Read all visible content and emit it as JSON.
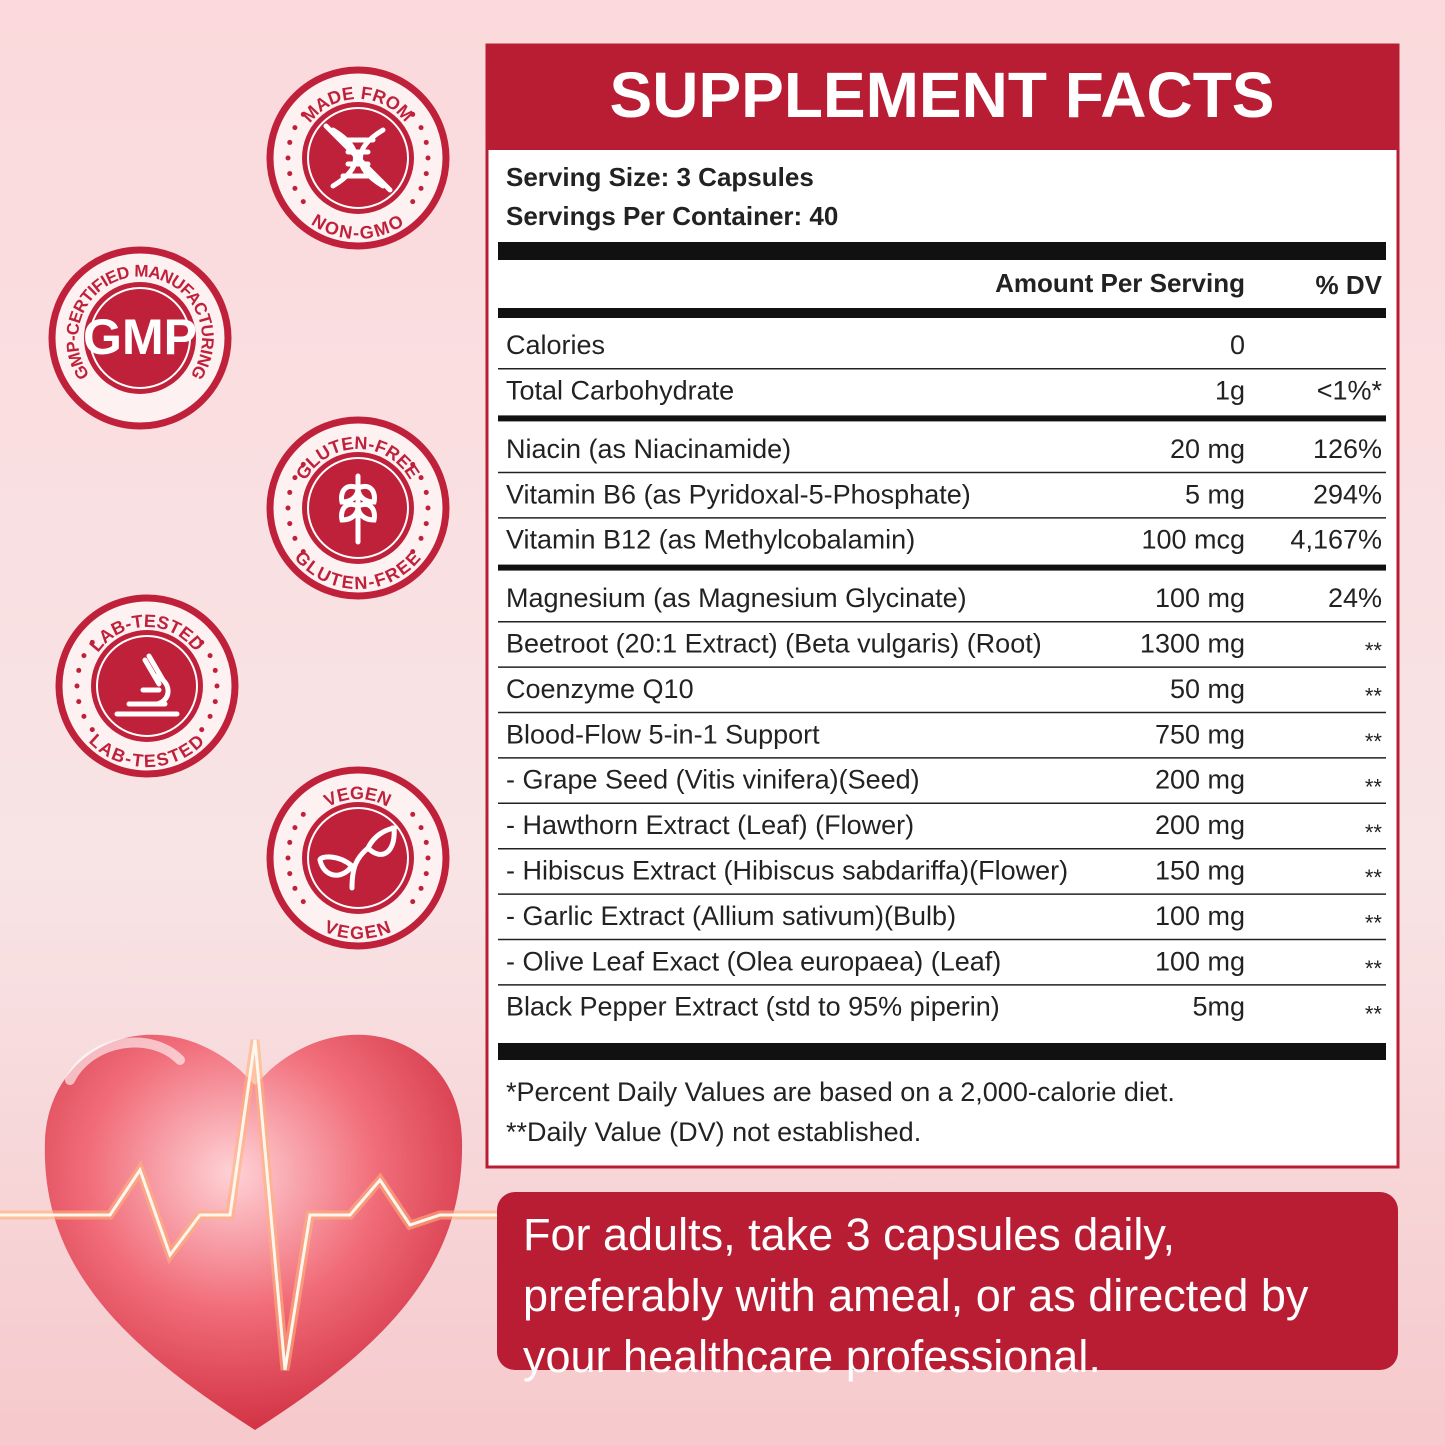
{
  "badges": [
    {
      "top": "MADE FROM",
      "bottom": "NON-GMO"
    },
    {
      "ring": "GMP-CERTIFIED MANUFACTURING",
      "center": "GMP"
    },
    {
      "top": "GLUTEN-FREE",
      "bottom": "GLUTEN-FREE"
    },
    {
      "top": "LAB-TESTED",
      "bottom": "LAB-TESTED"
    },
    {
      "top": "VEGEN",
      "bottom": "VEGEN"
    }
  ],
  "label": {
    "title": "SUPPLEMENT FACTS",
    "serving_size": "Serving Size: 3 Capsules",
    "servings_per_container": "Servings Per Container: 40",
    "columns": {
      "amount": "Amount Per Serving",
      "dv": "% DV"
    },
    "groups": [
      [
        {
          "name": "Calories",
          "amount": "0"
        },
        {
          "name": "Total Carbohydrate",
          "amount": "1g",
          "dv": "<1%*"
        }
      ],
      [
        {
          "name": "Niacin (as Niacinamide)",
          "amount": "20 mg",
          "dv": "126%"
        },
        {
          "name": "Vitamin B6 (as Pyridoxal-5-Phosphate)",
          "amount": "5 mg",
          "dv": "294%"
        },
        {
          "name": "Vitamin B12 (as Methylcobalamin)",
          "amount": "100 mcg",
          "dv": "4,167%"
        }
      ],
      [
        {
          "name": "Magnesium (as Magnesium Glycinate)",
          "amount": "100 mg",
          "dv": "24%"
        },
        {
          "name": "Beetroot (20:1 Extract) (Beta vulgaris) (Root)",
          "amount": "1300 mg",
          "dv": "**"
        },
        {
          "name": "Coenzyme Q10",
          "amount": "50 mg",
          "dv": "**"
        },
        {
          "name": "Blood-Flow 5-in-1 Support",
          "amount": "750 mg",
          "dv": "**"
        },
        {
          "name": "- Grape Seed (Vitis vinifera)(Seed)",
          "amount": "200 mg",
          "dv": "**"
        },
        {
          "name": "- Hawthorn Extract (Leaf) (Flower)",
          "amount": "200 mg",
          "dv": "**"
        },
        {
          "name": "- Hibiscus Extract (Hibiscus sabdariffa)(Flower)",
          "amount": "150 mg",
          "dv": "**"
        },
        {
          "name": "- Garlic Extract (Allium sativum)(Bulb)",
          "amount": "100 mg",
          "dv": "**"
        },
        {
          "name": "- Olive Leaf Exact (Olea europaea) (Leaf)",
          "amount": "100 mg",
          "dv": "**"
        },
        {
          "name": "Black Pepper Extract (std to 95% piperin)",
          "amount": "5mg",
          "dv": "**"
        }
      ]
    ],
    "footnotes": [
      "*Percent Daily Values are based on a 2,000-calorie diet.",
      "**Daily Value (DV) not established."
    ]
  },
  "directions": "For adults, take 3 capsules daily, preferably with ameal, or as directed by your healthcare professional."
}
